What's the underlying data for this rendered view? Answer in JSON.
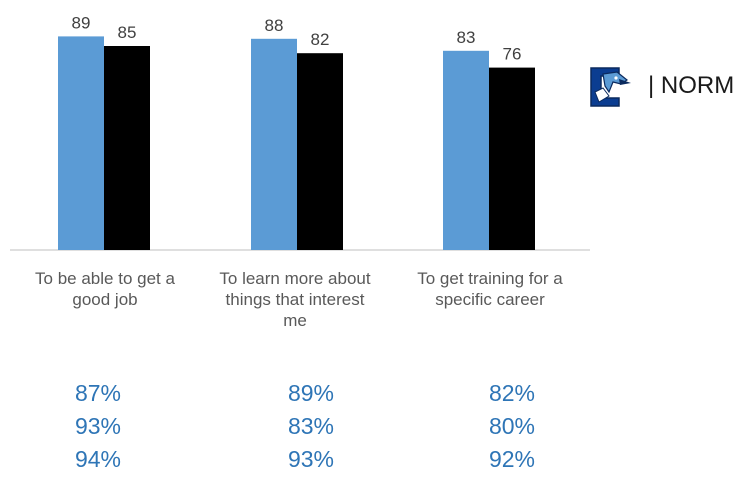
{
  "chart_data": {
    "type": "bar",
    "categories": [
      "To be able to get a good job",
      "To learn more about things that interest me",
      "To get training for a specific career"
    ],
    "series": [
      {
        "values": [
          89,
          88,
          83
        ],
        "color": "#5B9BD5"
      },
      {
        "values": [
          85,
          82,
          76
        ],
        "color": "#000000"
      }
    ],
    "ylim": [
      0,
      100
    ],
    "grid": false
  },
  "labels": {
    "cat0_line1": "To be able to get a",
    "cat0_line2": "good job",
    "cat1_line1": "To learn more about",
    "cat1_line2": "things that interest",
    "cat1_line3": "me",
    "cat2_line1": "To get training for a",
    "cat2_line2": "specific career"
  },
  "legend": {
    "text": "| NORM",
    "icon": "bluejay-logo-icon"
  },
  "percent_rows": [
    [
      "87%",
      "89%",
      "82%"
    ],
    [
      "93%",
      "83%",
      "80%"
    ],
    [
      "94%",
      "93%",
      "92%"
    ]
  ],
  "colors": {
    "accent_blue": "#5B9BD5",
    "percent_blue": "#2E75B6",
    "bar_black": "#000000"
  }
}
